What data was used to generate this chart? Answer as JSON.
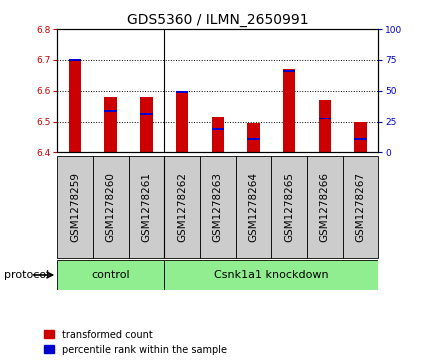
{
  "title": "GDS5360 / ILMN_2650991",
  "samples": [
    "GSM1278259",
    "GSM1278260",
    "GSM1278261",
    "GSM1278262",
    "GSM1278263",
    "GSM1278264",
    "GSM1278265",
    "GSM1278266",
    "GSM1278267"
  ],
  "red_values": [
    6.7,
    6.58,
    6.58,
    6.6,
    6.515,
    6.495,
    6.67,
    6.57,
    6.5
  ],
  "blue_values": [
    6.7,
    6.535,
    6.525,
    6.595,
    6.475,
    6.445,
    6.665,
    6.51,
    6.445
  ],
  "bar_bottom": 6.4,
  "ylim": [
    6.4,
    6.8
  ],
  "y2lim": [
    0,
    100
  ],
  "yticks": [
    6.4,
    6.5,
    6.6,
    6.7,
    6.8
  ],
  "y2ticks": [
    0,
    25,
    50,
    75,
    100
  ],
  "red_color": "#CC0000",
  "blue_color": "#0000CC",
  "bar_width": 0.35,
  "control_samples": 3,
  "control_label": "control",
  "treatment_label": "Csnk1a1 knockdown",
  "protocol_label": "protocol",
  "legend_red": "transformed count",
  "legend_blue": "percentile rank within the sample",
  "sample_box_color": "#CCCCCC",
  "control_color": "#90EE90",
  "treatment_color": "#90EE90",
  "title_fontsize": 10,
  "tick_fontsize": 6.5,
  "sample_fontsize": 7.5,
  "proto_fontsize": 8,
  "legend_fontsize": 7
}
